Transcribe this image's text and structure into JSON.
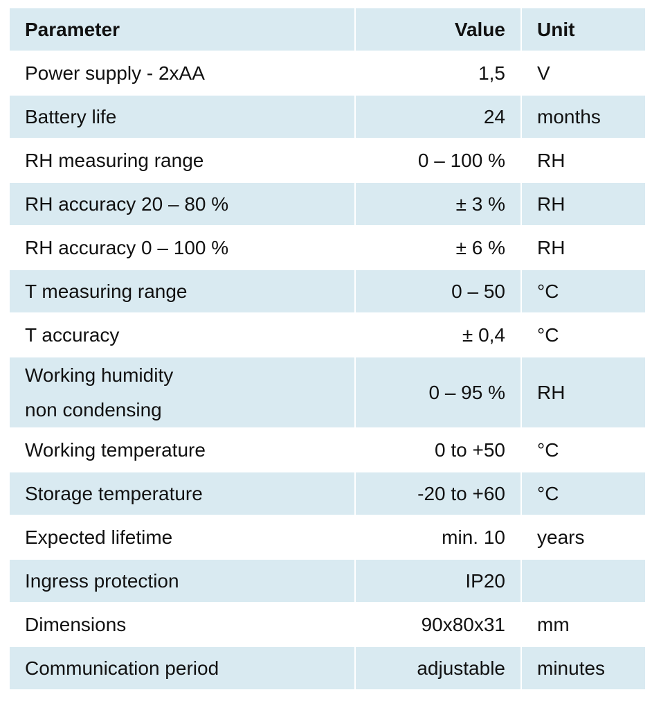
{
  "table": {
    "header": [
      "Parameter",
      "Value",
      "Unit"
    ],
    "rows": [
      [
        "Power supply - 2xAA",
        "1,5",
        "V"
      ],
      [
        "Battery life",
        "24",
        "months"
      ],
      [
        "RH measuring range",
        "0 – 100 %",
        "RH"
      ],
      [
        "RH accuracy 20 – 80 %",
        "± 3 %",
        "RH"
      ],
      [
        "RH accuracy 0 – 100 %",
        "± 6 %",
        "RH"
      ],
      [
        "T measuring range",
        "0 – 50",
        "°C"
      ],
      [
        "T accuracy",
        "± 0,4",
        "°C"
      ],
      [
        "Working humidity\nnon condensing",
        "0 – 95 %",
        "RH"
      ],
      [
        "Working temperature",
        "0 to +50",
        "°C"
      ],
      [
        "Storage temperature",
        "-20 to +60",
        "°C"
      ],
      [
        "Expected lifetime",
        "min. 10",
        "years"
      ],
      [
        "Ingress protection",
        "IP20"
      ],
      [
        "Dimensions",
        "90x80x31",
        "mm"
      ],
      [
        "Communication period",
        "adjustable",
        "minutes"
      ]
    ]
  }
}
